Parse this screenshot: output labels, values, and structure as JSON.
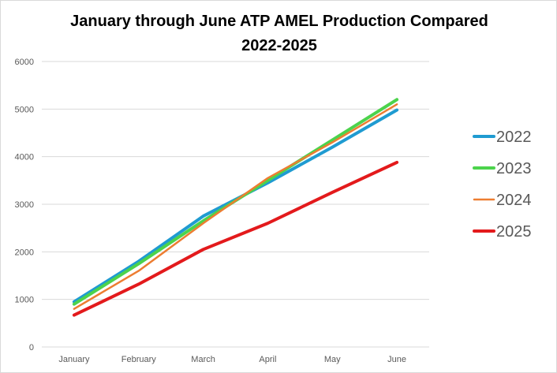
{
  "chart_data": {
    "type": "line",
    "title": "January through June ATP AMEL Production Compared",
    "subtitle": "2022-2025",
    "xlabel": "",
    "ylabel": "",
    "categories": [
      "January",
      "February",
      "March",
      "April",
      "May",
      "June"
    ],
    "ylim": [
      0,
      6000
    ],
    "yticks": [
      "0",
      "1000",
      "2000",
      "3000",
      "4000",
      "5000",
      "6000"
    ],
    "grid": true,
    "legend_position": "right",
    "series": [
      {
        "name": "2022",
        "color": "#1f9bd1",
        "values": [
          950,
          1800,
          2750,
          3450,
          4200,
          4980
        ]
      },
      {
        "name": "2023",
        "color": "#4cd34c",
        "values": [
          900,
          1750,
          2650,
          3500,
          4350,
          5200
        ]
      },
      {
        "name": "2024",
        "color": "#ed7d31",
        "values": [
          800,
          1600,
          2600,
          3550,
          4300,
          5100
        ]
      },
      {
        "name": "2025",
        "color": "#e31a1c",
        "values": [
          670,
          1320,
          2050,
          2600,
          3250,
          3880
        ]
      }
    ]
  }
}
